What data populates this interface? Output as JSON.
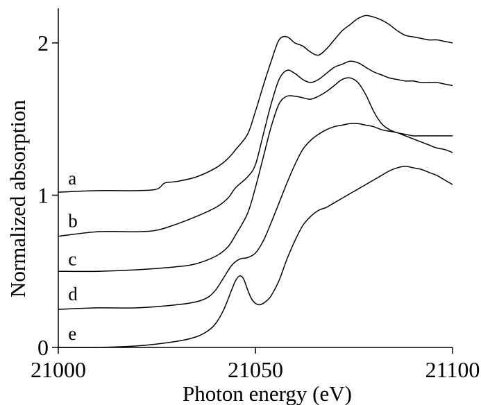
{
  "chart_data": {
    "type": "line",
    "title": "",
    "xlabel": "Photon energy (eV)",
    "ylabel": "Normalized absorption",
    "xlim": [
      21000,
      21100
    ],
    "ylim": [
      0,
      2.2
    ],
    "x_ticks": [
      21000,
      21050,
      21100
    ],
    "y_ticks": [
      0,
      1,
      2
    ],
    "x_tick_labels": [
      "21000",
      "21050",
      "21100"
    ],
    "y_tick_labels": [
      "0",
      "1",
      "2"
    ],
    "grid": false,
    "legend": "none",
    "series": [
      {
        "name": "a",
        "x": [
          21000,
          21010,
          21020,
          21025,
          21027,
          21030,
          21035,
          21040,
          21043,
          21045,
          21048,
          21050,
          21052,
          21054,
          21056,
          21058,
          21060,
          21062,
          21064,
          21066,
          21068,
          21070,
          21072,
          21074,
          21076,
          21078,
          21080,
          21082,
          21084,
          21086,
          21088,
          21090,
          21092,
          21094,
          21096,
          21098,
          21100
        ],
        "values": [
          1.02,
          1.03,
          1.03,
          1.04,
          1.08,
          1.09,
          1.12,
          1.18,
          1.24,
          1.3,
          1.4,
          1.55,
          1.72,
          1.88,
          2.02,
          2.04,
          2.0,
          1.98,
          1.94,
          1.92,
          1.96,
          2.02,
          2.08,
          2.12,
          2.16,
          2.18,
          2.17,
          2.15,
          2.12,
          2.08,
          2.05,
          2.04,
          2.03,
          2.02,
          2.02,
          2.01,
          2.0
        ],
        "color": "#000000"
      },
      {
        "name": "b",
        "x": [
          21000,
          21010,
          21020,
          21025,
          21030,
          21035,
          21040,
          21043,
          21045,
          21048,
          21050,
          21052,
          21054,
          21056,
          21058,
          21060,
          21062,
          21064,
          21066,
          21068,
          21070,
          21072,
          21074,
          21076,
          21078,
          21080,
          21082,
          21084,
          21086,
          21088,
          21090,
          21092,
          21094,
          21096,
          21098,
          21100
        ],
        "values": [
          0.73,
          0.76,
          0.76,
          0.77,
          0.81,
          0.86,
          0.92,
          0.98,
          1.05,
          1.12,
          1.2,
          1.4,
          1.6,
          1.76,
          1.82,
          1.8,
          1.76,
          1.74,
          1.76,
          1.8,
          1.84,
          1.86,
          1.88,
          1.87,
          1.84,
          1.81,
          1.79,
          1.77,
          1.76,
          1.75,
          1.75,
          1.74,
          1.74,
          1.74,
          1.73,
          1.72
        ],
        "color": "#000000"
      },
      {
        "name": "c",
        "x": [
          21000,
          21010,
          21020,
          21030,
          21035,
          21040,
          21043,
          21045,
          21048,
          21050,
          21052,
          21054,
          21056,
          21058,
          21060,
          21062,
          21064,
          21066,
          21068,
          21070,
          21072,
          21074,
          21076,
          21078,
          21080,
          21082,
          21084,
          21086,
          21088,
          21090,
          21092,
          21094,
          21096,
          21098,
          21100
        ],
        "values": [
          0.5,
          0.5,
          0.51,
          0.53,
          0.55,
          0.6,
          0.66,
          0.74,
          0.88,
          1.05,
          1.25,
          1.45,
          1.6,
          1.65,
          1.65,
          1.64,
          1.63,
          1.65,
          1.68,
          1.72,
          1.76,
          1.77,
          1.74,
          1.66,
          1.55,
          1.47,
          1.43,
          1.41,
          1.4,
          1.39,
          1.39,
          1.39,
          1.39,
          1.39,
          1.39
        ],
        "color": "#000000"
      },
      {
        "name": "d",
        "x": [
          21000,
          21010,
          21020,
          21030,
          21035,
          21038,
          21040,
          21042,
          21044,
          21046,
          21048,
          21050,
          21052,
          21054,
          21056,
          21058,
          21060,
          21062,
          21064,
          21066,
          21068,
          21070,
          21072,
          21074,
          21076,
          21078,
          21080,
          21082,
          21084,
          21086,
          21088,
          21090,
          21092,
          21094,
          21096,
          21098,
          21100
        ],
        "values": [
          0.25,
          0.26,
          0.26,
          0.28,
          0.3,
          0.33,
          0.38,
          0.46,
          0.54,
          0.58,
          0.59,
          0.62,
          0.7,
          0.82,
          0.95,
          1.08,
          1.2,
          1.3,
          1.36,
          1.4,
          1.43,
          1.45,
          1.46,
          1.47,
          1.47,
          1.46,
          1.45,
          1.43,
          1.42,
          1.41,
          1.39,
          1.37,
          1.35,
          1.33,
          1.31,
          1.3,
          1.28
        ],
        "color": "#000000"
      },
      {
        "name": "e",
        "x": [
          21000,
          21010,
          21020,
          21030,
          21035,
          21038,
          21040,
          21042,
          21044,
          21045,
          21046,
          21047,
          21048,
          21049,
          21050,
          21051,
          21052,
          21053,
          21054,
          21056,
          21058,
          21060,
          21062,
          21064,
          21066,
          21068,
          21070,
          21072,
          21074,
          21076,
          21078,
          21080,
          21082,
          21084,
          21086,
          21088,
          21090,
          21092,
          21094,
          21096,
          21098,
          21100
        ],
        "values": [
          0.0,
          0.0,
          0.01,
          0.04,
          0.07,
          0.11,
          0.16,
          0.25,
          0.38,
          0.44,
          0.47,
          0.45,
          0.38,
          0.32,
          0.29,
          0.28,
          0.29,
          0.31,
          0.34,
          0.44,
          0.58,
          0.7,
          0.8,
          0.86,
          0.9,
          0.92,
          0.95,
          0.98,
          1.01,
          1.04,
          1.07,
          1.1,
          1.13,
          1.16,
          1.18,
          1.19,
          1.18,
          1.17,
          1.15,
          1.13,
          1.1,
          1.07
        ],
        "color": "#000000"
      }
    ],
    "series_labels": [
      {
        "text": "a",
        "x": 21002.5,
        "y": 1.07
      },
      {
        "text": "b",
        "x": 21002.5,
        "y": 0.79
      },
      {
        "text": "c",
        "x": 21002.5,
        "y": 0.54
      },
      {
        "text": "d",
        "x": 21002.5,
        "y": 0.31
      },
      {
        "text": "e",
        "x": 21002.5,
        "y": 0.05
      }
    ]
  }
}
